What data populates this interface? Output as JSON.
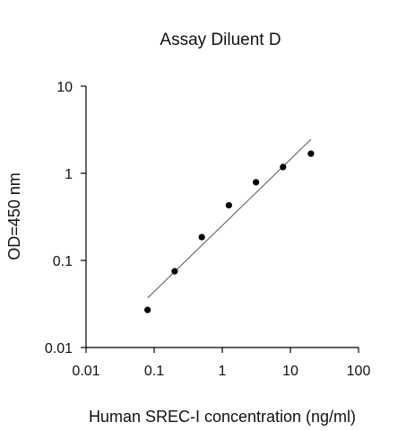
{
  "chart_data": {
    "type": "scatter",
    "title": "Assay Diluent D",
    "xlabel": "Human SREC-I concentration (ng/ml)",
    "ylabel": "OD=450 nm",
    "xscale": "log",
    "yscale": "log",
    "xlim": [
      0.01,
      100
    ],
    "ylim": [
      0.01,
      10
    ],
    "xticks": [
      0.01,
      0.1,
      1,
      10,
      100
    ],
    "xtick_labels": [
      "0.01",
      "0.1",
      "1",
      "10",
      "100"
    ],
    "yticks": [
      0.01,
      0.1,
      1,
      10
    ],
    "ytick_labels": [
      "0.01",
      "0.1",
      "1",
      "10"
    ],
    "grid": false,
    "legend": "none",
    "series": [
      {
        "x": [
          0.08,
          0.2,
          0.5,
          1.25,
          3.125,
          7.8,
          20
        ],
        "y": [
          0.027,
          0.075,
          0.185,
          0.43,
          0.79,
          1.18,
          1.68
        ]
      }
    ],
    "trendline": {
      "x": [
        0.08,
        20
      ],
      "y": [
        0.037,
        2.45
      ]
    },
    "colors": {
      "points": "#000000",
      "trendline": "#555555",
      "axes": "#000000"
    }
  }
}
